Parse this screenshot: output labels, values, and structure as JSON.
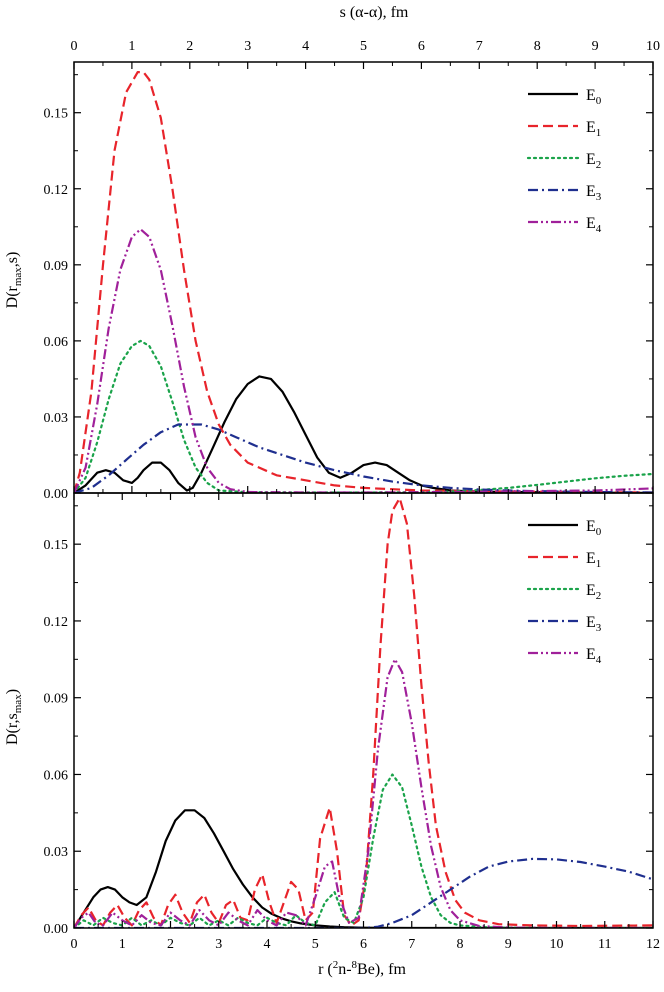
{
  "colors": {
    "E0": "#000000",
    "E1": "#e8242b",
    "E2": "#1aa34a",
    "E3": "#1f2f8f",
    "E4": "#a0209a"
  },
  "chart_data": [
    {
      "type": "line",
      "panel": "top",
      "title": "",
      "xlabel": "s (α-α), fm",
      "ylabel": "D(r_max,s)",
      "ylabel_main": "D(r",
      "ylabel_sub": "max",
      "ylabel_tail": ",s)",
      "xlim": [
        0,
        10
      ],
      "ylim": [
        0,
        0.17
      ],
      "x_ticks": [
        "0",
        "1",
        "2",
        "3",
        "4",
        "5",
        "6",
        "7",
        "8",
        "9",
        "10"
      ],
      "y_ticks": [
        "0.00",
        "0.03",
        "0.06",
        "0.09",
        "0.12",
        "0.15"
      ],
      "grid": false,
      "legend": "top-right",
      "series": [
        {
          "name": "E0",
          "label_main": "E",
          "label_sub": "0",
          "style": "solid",
          "x": [
            0,
            0.2,
            0.4,
            0.55,
            0.7,
            0.85,
            1.0,
            1.1,
            1.2,
            1.35,
            1.5,
            1.65,
            1.8,
            1.95,
            2.05,
            2.2,
            2.4,
            2.6,
            2.8,
            3.0,
            3.2,
            3.4,
            3.6,
            3.8,
            4.0,
            4.2,
            4.4,
            4.6,
            4.8,
            5.0,
            5.2,
            5.4,
            5.6,
            5.8,
            6.0,
            6.2,
            6.5,
            7.0,
            8.0,
            9.0,
            10.0
          ],
          "y": [
            0,
            0.003,
            0.008,
            0.009,
            0.008,
            0.005,
            0.004,
            0.006,
            0.009,
            0.012,
            0.012,
            0.009,
            0.004,
            0.001,
            0.002,
            0.008,
            0.018,
            0.028,
            0.037,
            0.043,
            0.046,
            0.045,
            0.04,
            0.032,
            0.023,
            0.014,
            0.008,
            0.006,
            0.008,
            0.011,
            0.012,
            0.011,
            0.008,
            0.005,
            0.003,
            0.002,
            0.001,
            0.0005,
            0.0003,
            0.0001,
            0
          ]
        },
        {
          "name": "E1",
          "label_main": "E",
          "label_sub": "1",
          "style": "dash",
          "x": [
            0,
            0.1,
            0.3,
            0.5,
            0.7,
            0.9,
            1.1,
            1.2,
            1.3,
            1.5,
            1.7,
            1.9,
            2.1,
            2.3,
            2.5,
            2.7,
            3.0,
            3.5,
            4.0,
            4.5,
            5.0,
            5.5,
            6.0,
            7.0,
            8.0,
            9.0,
            10.0
          ],
          "y": [
            0,
            0.008,
            0.04,
            0.09,
            0.135,
            0.158,
            0.166,
            0.166,
            0.163,
            0.148,
            0.12,
            0.088,
            0.06,
            0.04,
            0.027,
            0.019,
            0.012,
            0.007,
            0.005,
            0.003,
            0.002,
            0.0015,
            0.001,
            0.0007,
            0.0005,
            0.0003,
            0.0002
          ]
        },
        {
          "name": "E2",
          "label_main": "E",
          "label_sub": "2",
          "style": "dot",
          "x": [
            0,
            0.2,
            0.4,
            0.6,
            0.8,
            1.0,
            1.15,
            1.3,
            1.5,
            1.7,
            1.9,
            2.1,
            2.3,
            2.5,
            3.0,
            4.0,
            5.0,
            6.0,
            6.5,
            7.0,
            7.5,
            8.0,
            8.5,
            9.0,
            9.5,
            10.0
          ],
          "y": [
            0,
            0.006,
            0.02,
            0.037,
            0.051,
            0.058,
            0.06,
            0.058,
            0.05,
            0.036,
            0.021,
            0.01,
            0.004,
            0.001,
            0.0003,
            0.0002,
            0.0002,
            0.0003,
            0.0006,
            0.0012,
            0.002,
            0.0032,
            0.0045,
            0.0058,
            0.0068,
            0.0075
          ]
        },
        {
          "name": "E3",
          "label_main": "E",
          "label_sub": "3",
          "style": "dashdot",
          "x": [
            0,
            0.3,
            0.6,
            0.9,
            1.2,
            1.5,
            1.8,
            2.0,
            2.2,
            2.5,
            2.8,
            3.2,
            3.6,
            4.0,
            4.5,
            5.0,
            5.5,
            6.0,
            6.5,
            7.0,
            7.5,
            8.0,
            9.0,
            10.0
          ],
          "y": [
            0,
            0.002,
            0.007,
            0.013,
            0.019,
            0.024,
            0.027,
            0.027,
            0.027,
            0.025,
            0.022,
            0.018,
            0.015,
            0.012,
            0.009,
            0.0065,
            0.0045,
            0.003,
            0.002,
            0.0014,
            0.001,
            0.0007,
            0.0004,
            0.0002
          ]
        },
        {
          "name": "E4",
          "label_main": "E",
          "label_sub": "4",
          "style": "dashdotdot",
          "x": [
            0,
            0.2,
            0.4,
            0.6,
            0.8,
            1.0,
            1.15,
            1.3,
            1.5,
            1.7,
            1.9,
            2.1,
            2.3,
            2.5,
            2.7,
            3.0,
            4.0,
            5.0,
            6.0,
            7.0,
            8.0,
            9.0,
            9.5,
            10.0
          ],
          "y": [
            0,
            0.01,
            0.035,
            0.065,
            0.088,
            0.101,
            0.104,
            0.101,
            0.088,
            0.066,
            0.042,
            0.022,
            0.01,
            0.004,
            0.0015,
            0.0004,
            0.0002,
            0.0002,
            0.0003,
            0.0005,
            0.0008,
            0.001,
            0.0014,
            0.0018
          ]
        }
      ]
    },
    {
      "type": "line",
      "panel": "bottom",
      "title": "",
      "xlabel": "r (2n-8Be), fm",
      "xlabel_parts": [
        "r (",
        "2",
        "n-",
        "8",
        "Be), fm"
      ],
      "ylabel": "D(r,s_max)",
      "ylabel_main": "D(r,s",
      "ylabel_sub": "max",
      "ylabel_tail": ")",
      "xlim": [
        0,
        12
      ],
      "ylim": [
        0,
        0.17
      ],
      "x_ticks": [
        "0",
        "1",
        "2",
        "3",
        "4",
        "5",
        "6",
        "7",
        "8",
        "9",
        "10",
        "11",
        "12"
      ],
      "y_ticks": [
        "0.00",
        "0.03",
        "0.06",
        "0.09",
        "0.12",
        "0.15"
      ],
      "grid": false,
      "legend": "top-right",
      "series": [
        {
          "name": "E0",
          "label_main": "E",
          "label_sub": "0",
          "style": "solid",
          "x": [
            0,
            0.2,
            0.4,
            0.55,
            0.7,
            0.85,
            1.0,
            1.15,
            1.3,
            1.5,
            1.7,
            1.9,
            2.1,
            2.3,
            2.5,
            2.7,
            2.9,
            3.1,
            3.3,
            3.5,
            3.7,
            3.9,
            4.1,
            4.3,
            4.5,
            4.7,
            5.0,
            5.3,
            5.6,
            6.0,
            7.0,
            12.0
          ],
          "y": [
            0,
            0.006,
            0.012,
            0.015,
            0.016,
            0.015,
            0.012,
            0.01,
            0.009,
            0.012,
            0.022,
            0.034,
            0.042,
            0.046,
            0.046,
            0.043,
            0.037,
            0.03,
            0.023,
            0.017,
            0.012,
            0.008,
            0.0055,
            0.0038,
            0.0026,
            0.0018,
            0.001,
            0.0006,
            0.0003,
            0.0001,
            0,
            0
          ]
        },
        {
          "name": "E1",
          "label_main": "E",
          "label_sub": "1",
          "style": "dash",
          "x": [
            0,
            0.15,
            0.3,
            0.45,
            0.6,
            0.75,
            0.9,
            1.05,
            1.2,
            1.35,
            1.5,
            1.65,
            1.8,
            1.95,
            2.1,
            2.25,
            2.4,
            2.55,
            2.7,
            2.85,
            3.0,
            3.15,
            3.3,
            3.45,
            3.6,
            3.75,
            3.9,
            4.05,
            4.2,
            4.35,
            4.5,
            4.65,
            4.8,
            4.95,
            5.1,
            5.3,
            5.45,
            5.6,
            5.75,
            5.9,
            6.05,
            6.2,
            6.35,
            6.5,
            6.6,
            6.75,
            6.9,
            7.05,
            7.2,
            7.35,
            7.5,
            7.7,
            7.9,
            8.1,
            8.4,
            8.8,
            9.5,
            10.5,
            12.0
          ],
          "y": [
            0,
            0.005,
            0.008,
            0.003,
            0.001,
            0.006,
            0.009,
            0.004,
            0.001,
            0.007,
            0.01,
            0.004,
            0.001,
            0.009,
            0.013,
            0.006,
            0.002,
            0.01,
            0.013,
            0.006,
            0.002,
            0.009,
            0.011,
            0.004,
            0.003,
            0.015,
            0.021,
            0.01,
            0.002,
            0.01,
            0.018,
            0.015,
            0.003,
            0.006,
            0.035,
            0.047,
            0.03,
            0.005,
            0.001,
            0.003,
            0.02,
            0.06,
            0.11,
            0.15,
            0.163,
            0.168,
            0.158,
            0.13,
            0.095,
            0.065,
            0.04,
            0.022,
            0.011,
            0.006,
            0.003,
            0.0015,
            0.001,
            0.0008,
            0.001
          ]
        },
        {
          "name": "E2",
          "label_main": "E",
          "label_sub": "2",
          "style": "dot",
          "x": [
            0,
            0.2,
            0.4,
            0.6,
            0.8,
            1.0,
            1.2,
            1.4,
            1.6,
            1.8,
            2.0,
            2.2,
            2.4,
            2.6,
            2.8,
            3.0,
            3.2,
            3.4,
            3.6,
            3.8,
            4.0,
            4.2,
            4.4,
            4.6,
            4.8,
            5.0,
            5.2,
            5.4,
            5.6,
            5.8,
            6.0,
            6.2,
            6.4,
            6.6,
            6.8,
            7.0,
            7.2,
            7.4,
            7.6,
            7.8,
            8.0,
            8.5,
            9.0,
            10.0,
            12.0
          ],
          "y": [
            0,
            0.003,
            0.001,
            0.004,
            0.002,
            0.001,
            0.004,
            0.001,
            0.003,
            0.001,
            0.004,
            0.002,
            0.001,
            0.004,
            0.001,
            0.003,
            0.001,
            0.004,
            0.002,
            0.001,
            0.004,
            0.002,
            0.001,
            0.005,
            0.002,
            0.001,
            0.01,
            0.014,
            0.004,
            0.002,
            0.012,
            0.035,
            0.054,
            0.06,
            0.055,
            0.04,
            0.024,
            0.012,
            0.005,
            0.002,
            0.001,
            0.0003,
            0.0001,
            0,
            0
          ]
        },
        {
          "name": "E3",
          "label_main": "E",
          "label_sub": "3",
          "style": "dashdot",
          "x": [
            0,
            1,
            2,
            3,
            4,
            5,
            6.0,
            6.3,
            6.6,
            7.0,
            7.4,
            7.8,
            8.2,
            8.6,
            9.0,
            9.5,
            10.0,
            10.5,
            11.0,
            11.5,
            12.0
          ],
          "y": [
            0,
            0,
            0,
            0,
            0,
            0,
            0,
            0.0005,
            0.002,
            0.005,
            0.01,
            0.015,
            0.02,
            0.024,
            0.026,
            0.027,
            0.0268,
            0.0258,
            0.024,
            0.022,
            0.019
          ]
        },
        {
          "name": "E4",
          "label_main": "E",
          "label_sub": "4",
          "style": "dashdotdot",
          "x": [
            0,
            0.15,
            0.3,
            0.45,
            0.6,
            0.8,
            1.0,
            1.2,
            1.4,
            1.6,
            1.8,
            2.0,
            2.2,
            2.4,
            2.6,
            2.8,
            3.0,
            3.2,
            3.4,
            3.6,
            3.8,
            4.0,
            4.2,
            4.4,
            4.6,
            4.8,
            5.0,
            5.2,
            5.35,
            5.5,
            5.7,
            5.9,
            6.1,
            6.3,
            6.5,
            6.65,
            6.8,
            7.0,
            7.2,
            7.4,
            7.6,
            7.8,
            8.0,
            8.4,
            9.0,
            10.0,
            12.0
          ],
          "y": [
            0,
            0.004,
            0.006,
            0.002,
            0.001,
            0.006,
            0.003,
            0.001,
            0.005,
            0.002,
            0.001,
            0.006,
            0.003,
            0.001,
            0.007,
            0.003,
            0.001,
            0.006,
            0.003,
            0.001,
            0.007,
            0.003,
            0.001,
            0.006,
            0.005,
            0.001,
            0.012,
            0.024,
            0.026,
            0.012,
            0.002,
            0.004,
            0.03,
            0.07,
            0.098,
            0.105,
            0.1,
            0.08,
            0.055,
            0.032,
            0.016,
            0.007,
            0.003,
            0.0008,
            0.0002,
            0,
            0
          ]
        }
      ]
    }
  ]
}
